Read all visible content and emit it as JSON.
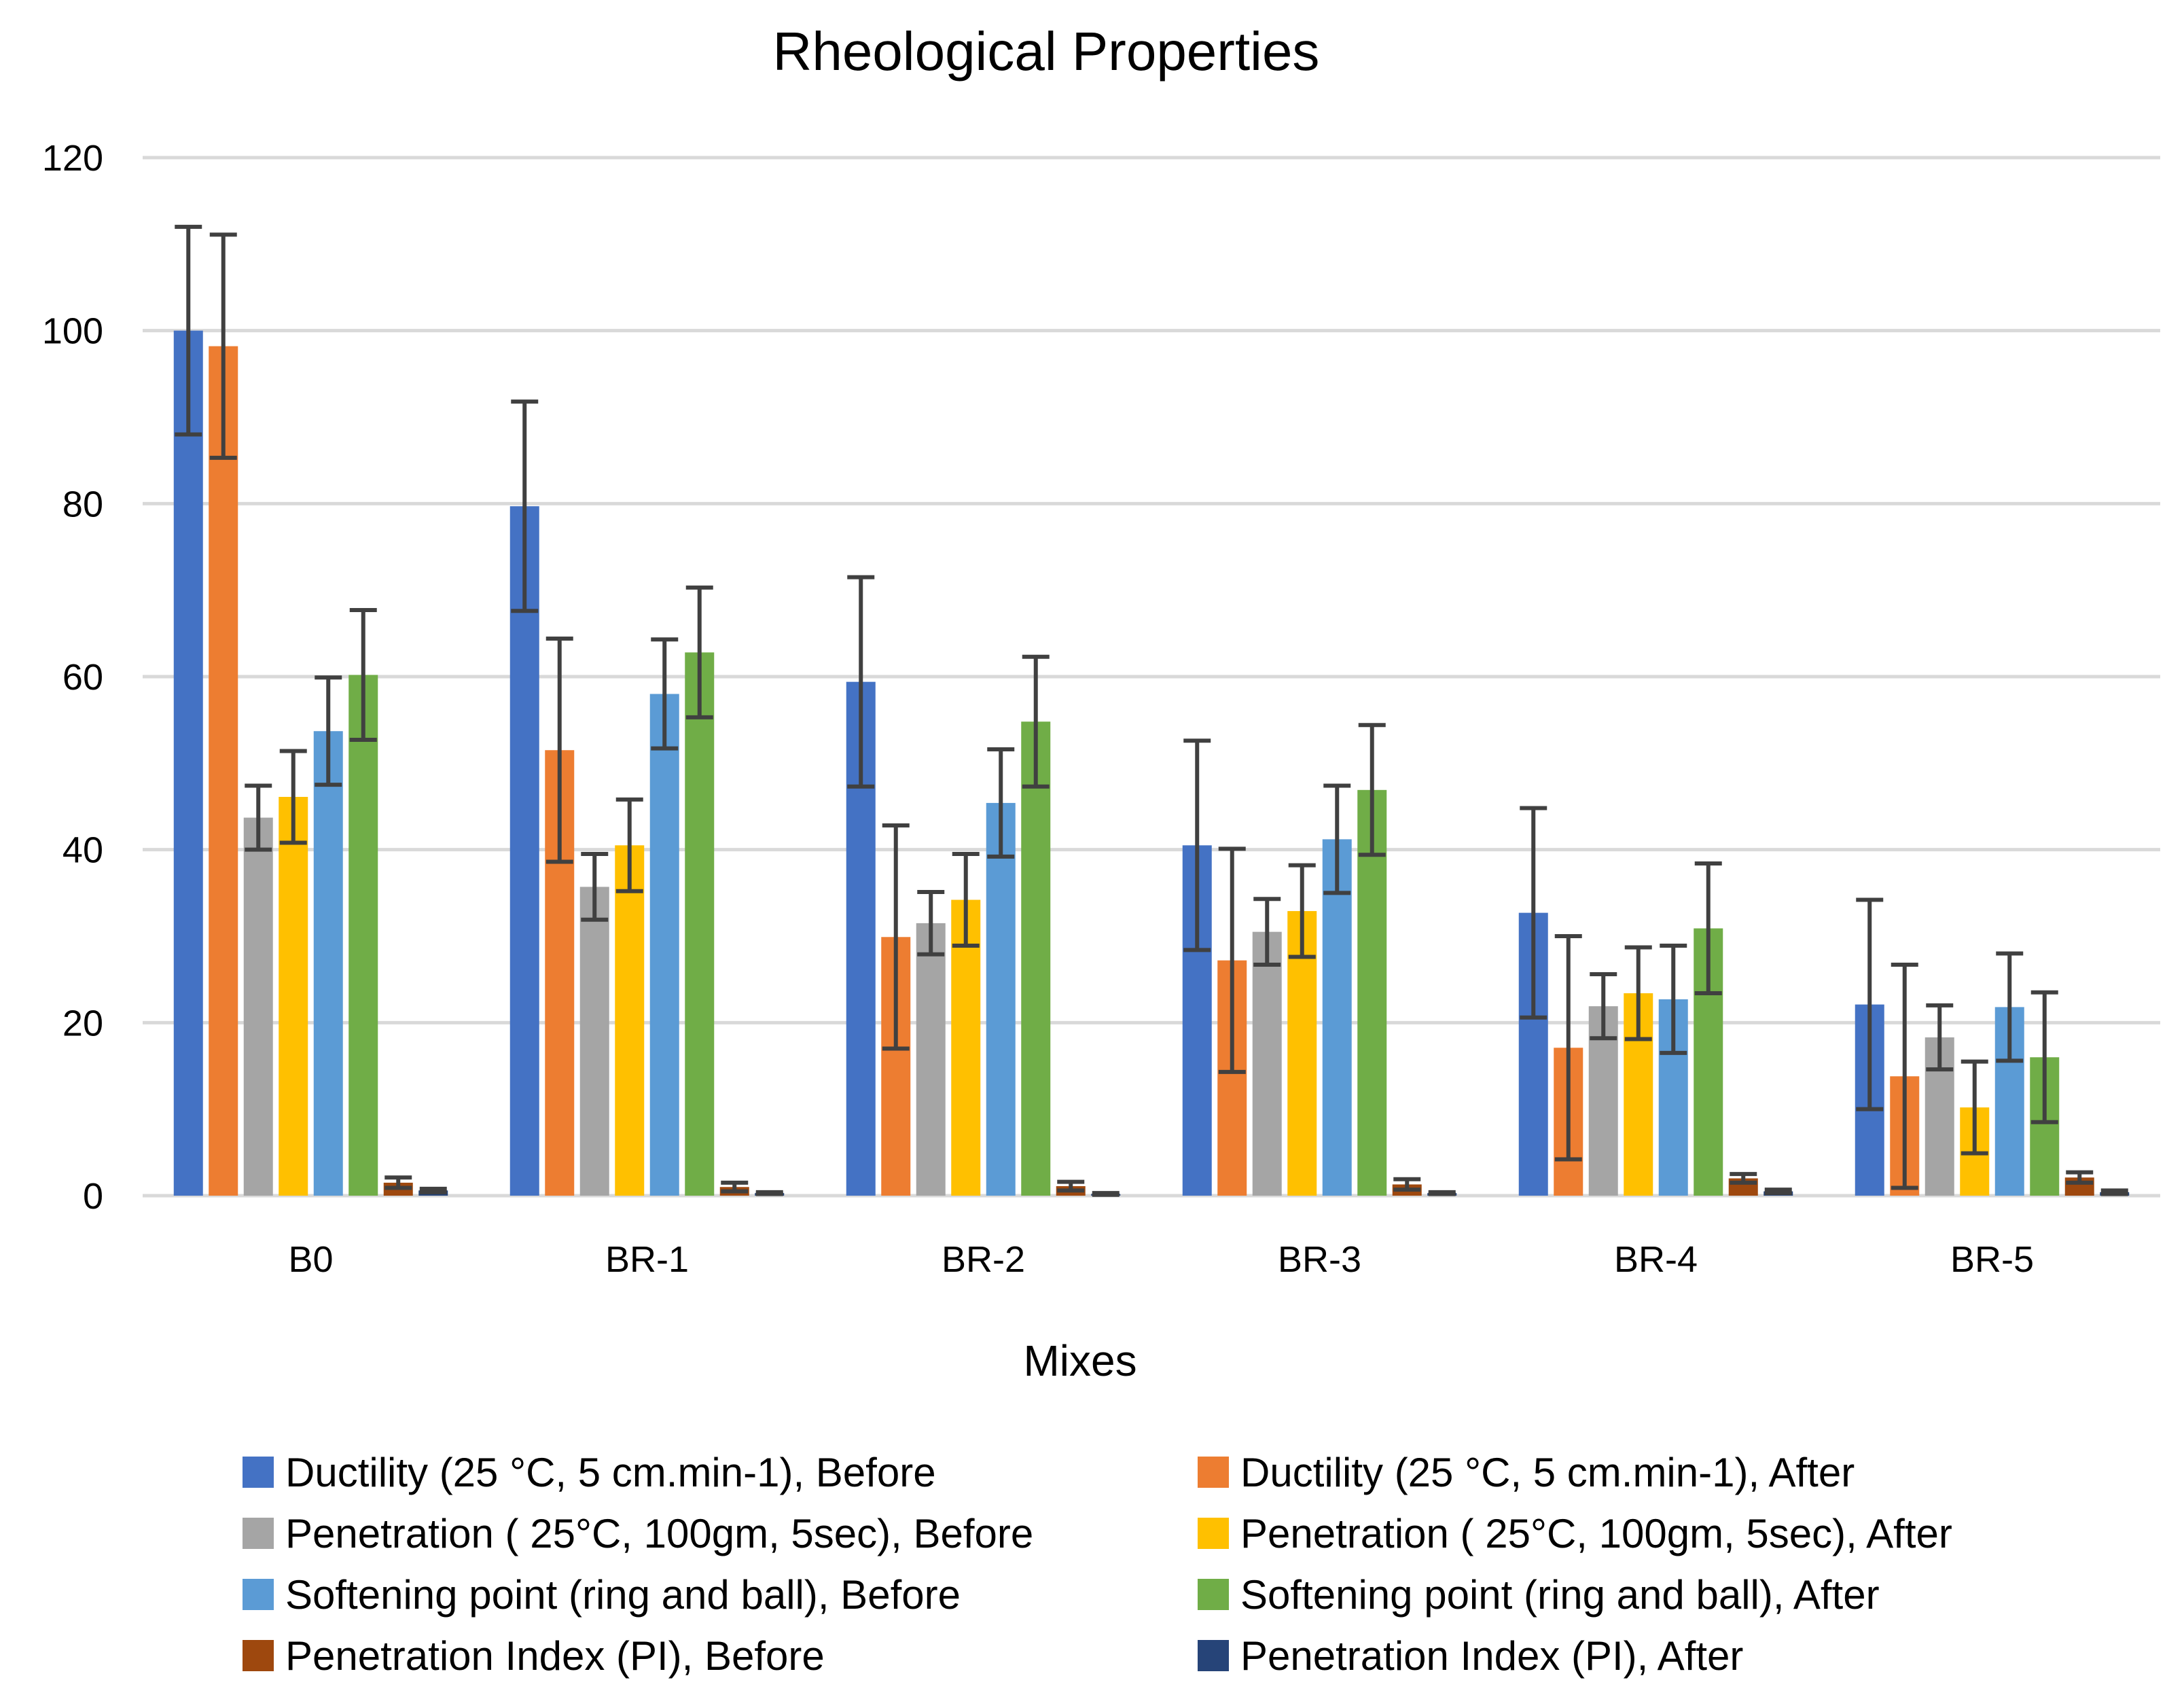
{
  "chart_data": {
    "type": "bar",
    "title": "Rheological Properties",
    "xlabel": "Mixes",
    "ylabel": "",
    "ylim": [
      0,
      120
    ],
    "yticks": [
      0,
      20,
      40,
      60,
      80,
      100,
      120
    ],
    "grid": true,
    "legend_position": "bottom",
    "categories": [
      "B0",
      "BR-1",
      "BR-2",
      "BR-3",
      "BR-4",
      "BR-5"
    ],
    "series": [
      {
        "name": "Ductility (25 °C, 5 cm.min-1), Before",
        "color": "#4472c4",
        "values": [
          100,
          79.7,
          59.4,
          40.5,
          32.7,
          22.1
        ],
        "errors": [
          12,
          12.1,
          12.1,
          12.1,
          12.1,
          12.1
        ]
      },
      {
        "name": "Ductility (25 °C, 5 cm.min-1), After",
        "color": "#ed7d31",
        "values": [
          98.2,
          51.5,
          29.9,
          27.2,
          17.1,
          13.8
        ],
        "errors": [
          12.9,
          12.9,
          12.9,
          12.9,
          12.9,
          12.9
        ]
      },
      {
        "name": "Penetration ( 25°C, 100gm, 5sec), Before",
        "color": "#a5a5a5",
        "values": [
          43.7,
          35.7,
          31.5,
          30.5,
          21.9,
          18.3
        ],
        "errors": [
          3.7,
          3.8,
          3.6,
          3.8,
          3.7,
          3.7
        ]
      },
      {
        "name": "Penetration ( 25°C, 100gm, 5sec), After",
        "color": "#ffc000",
        "values": [
          46.1,
          40.5,
          34.2,
          32.9,
          23.4,
          10.2
        ],
        "errors": [
          5.3,
          5.3,
          5.3,
          5.3,
          5.3,
          5.3
        ]
      },
      {
        "name": "Softening point (ring and ball), Before",
        "color": "#5b9bd5",
        "values": [
          53.7,
          58,
          45.4,
          41.2,
          22.7,
          21.8
        ],
        "errors": [
          6.2,
          6.3,
          6.2,
          6.2,
          6.2,
          6.2
        ]
      },
      {
        "name": "Softening point (ring and ball), After",
        "color": "#70ad47",
        "values": [
          60.2,
          62.8,
          54.8,
          46.9,
          30.9,
          16
        ],
        "errors": [
          7.5,
          7.5,
          7.5,
          7.5,
          7.5,
          7.5
        ]
      },
      {
        "name": "Penetration Index  (PI), Before",
        "color": "#9e480e",
        "values": [
          1.5,
          1,
          1.1,
          1.3,
          2,
          2.1
        ],
        "errors": [
          0.6,
          0.5,
          0.5,
          0.6,
          0.5,
          0.6
        ]
      },
      {
        "name": "Penetration Index (PI), After",
        "color": "#264478",
        "values": [
          0.6,
          0.3,
          0.2,
          0.3,
          0.5,
          0.4
        ],
        "errors": [
          0.2,
          0.1,
          0.1,
          0.1,
          0.2,
          0.2
        ]
      }
    ]
  }
}
